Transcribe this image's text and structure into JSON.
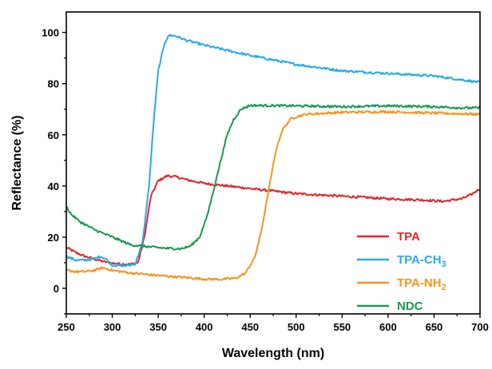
{
  "chart_data": {
    "type": "line",
    "title": "",
    "xlabel": "Wavelength (nm)",
    "ylabel": "Reflectance (%)",
    "xlim": [
      250,
      700
    ],
    "ylim": [
      -10,
      108
    ],
    "x_ticks": [
      "250",
      "300",
      "350",
      "400",
      "450",
      "500",
      "550",
      "600",
      "650",
      "700"
    ],
    "y_ticks": [
      "0",
      "20",
      "40",
      "60",
      "80",
      "100"
    ],
    "grid": false,
    "legend_position": "bottom-right",
    "series": [
      {
        "name": "TPA",
        "label_main": "TPA",
        "label_sub": "",
        "color": "#e0262c",
        "points": [
          [
            250,
            16
          ],
          [
            260,
            14
          ],
          [
            270,
            12.5
          ],
          [
            280,
            11.5
          ],
          [
            290,
            10.5
          ],
          [
            300,
            9.8
          ],
          [
            310,
            9.5
          ],
          [
            320,
            9.4
          ],
          [
            328,
            10
          ],
          [
            335,
            20
          ],
          [
            342,
            36
          ],
          [
            350,
            42
          ],
          [
            360,
            44
          ],
          [
            370,
            43.5
          ],
          [
            380,
            42.5
          ],
          [
            400,
            41
          ],
          [
            450,
            39
          ],
          [
            500,
            37
          ],
          [
            550,
            36
          ],
          [
            600,
            35
          ],
          [
            640,
            34.5
          ],
          [
            660,
            34
          ],
          [
            680,
            35
          ],
          [
            690,
            36.5
          ],
          [
            700,
            39
          ]
        ]
      },
      {
        "name": "TPA-CH3",
        "label_main": "TPA-CH",
        "label_sub": "3",
        "color": "#29abe2",
        "points": [
          [
            250,
            12.5
          ],
          [
            260,
            11
          ],
          [
            270,
            11
          ],
          [
            280,
            11.5
          ],
          [
            287,
            12.5
          ],
          [
            293,
            11.5
          ],
          [
            300,
            9
          ],
          [
            315,
            8.8
          ],
          [
            325,
            9.5
          ],
          [
            333,
            18
          ],
          [
            340,
            40
          ],
          [
            345,
            65
          ],
          [
            350,
            85
          ],
          [
            357,
            96
          ],
          [
            362,
            99
          ],
          [
            370,
            98.5
          ],
          [
            380,
            97
          ],
          [
            400,
            95
          ],
          [
            450,
            91
          ],
          [
            500,
            87.5
          ],
          [
            550,
            85
          ],
          [
            600,
            84
          ],
          [
            650,
            83
          ],
          [
            680,
            81.5
          ],
          [
            700,
            80.5
          ]
        ]
      },
      {
        "name": "TPA-NH2",
        "label_main": "TPA-NH",
        "label_sub": "2",
        "color": "#f7941d",
        "points": [
          [
            250,
            7
          ],
          [
            260,
            6.5
          ],
          [
            270,
            6.5
          ],
          [
            280,
            7
          ],
          [
            290,
            8
          ],
          [
            300,
            7
          ],
          [
            320,
            6
          ],
          [
            350,
            5
          ],
          [
            380,
            4.2
          ],
          [
            400,
            3.6
          ],
          [
            420,
            3.5
          ],
          [
            435,
            4
          ],
          [
            445,
            6
          ],
          [
            455,
            12
          ],
          [
            462,
            22
          ],
          [
            470,
            38
          ],
          [
            478,
            54
          ],
          [
            485,
            62
          ],
          [
            495,
            66.5
          ],
          [
            510,
            68
          ],
          [
            550,
            68.8
          ],
          [
            600,
            69
          ],
          [
            650,
            68.5
          ],
          [
            700,
            68
          ]
        ]
      },
      {
        "name": "NDC",
        "label_main": "NDC",
        "label_sub": "",
        "color": "#1a9850",
        "points": [
          [
            250,
            32
          ],
          [
            255,
            29
          ],
          [
            265,
            26
          ],
          [
            280,
            23
          ],
          [
            300,
            20
          ],
          [
            320,
            17
          ],
          [
            340,
            16.2
          ],
          [
            360,
            15.6
          ],
          [
            375,
            15.5
          ],
          [
            385,
            16.5
          ],
          [
            395,
            20
          ],
          [
            403,
            28
          ],
          [
            410,
            38
          ],
          [
            418,
            50
          ],
          [
            425,
            60
          ],
          [
            432,
            66
          ],
          [
            440,
            70
          ],
          [
            450,
            71.5
          ],
          [
            500,
            71.3
          ],
          [
            550,
            71
          ],
          [
            600,
            71.3
          ],
          [
            650,
            71
          ],
          [
            680,
            70.5
          ],
          [
            700,
            70.5
          ]
        ]
      }
    ]
  }
}
